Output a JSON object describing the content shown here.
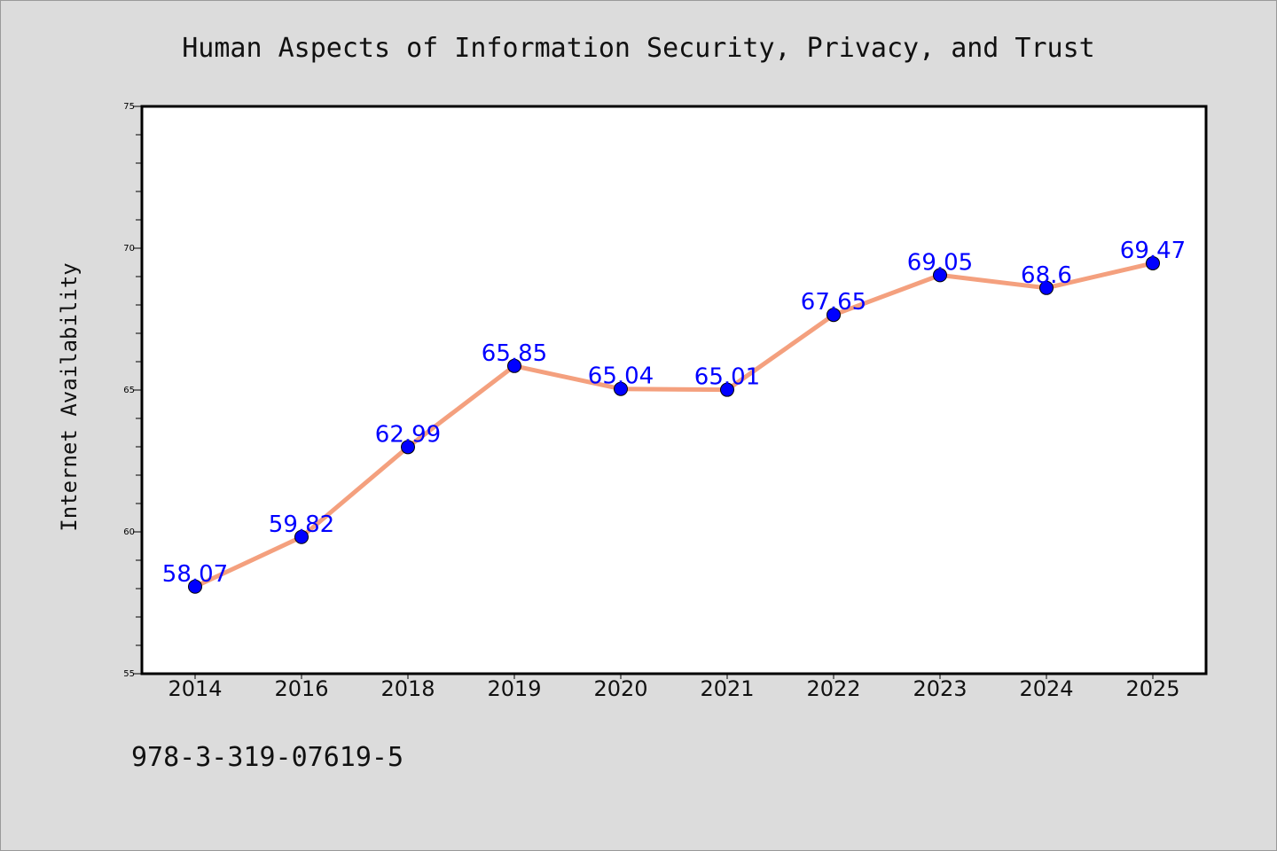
{
  "chart_data": {
    "type": "line",
    "title": "Human Aspects of Information Security, Privacy, and Trust",
    "ylabel": "Internet Availability",
    "xlabel": "",
    "categories": [
      "2014",
      "2016",
      "2018",
      "2019",
      "2020",
      "2021",
      "2022",
      "2023",
      "2024",
      "2025"
    ],
    "series": [
      {
        "values": [
          58.07,
          59.82,
          62.99,
          65.85,
          65.04,
          65.01,
          67.65,
          69.05,
          68.6,
          69.47
        ]
      }
    ],
    "data_labels": [
      "58.07",
      "59.82",
      "62.99",
      "65.85",
      "65.04",
      "65.01",
      "67.65",
      "69.05",
      "68.6",
      "69.47"
    ],
    "ylim": [
      55,
      75
    ],
    "yticks": [
      55,
      60,
      65,
      70,
      75
    ],
    "ytick_labels": [
      "55",
      "60",
      "65",
      "70",
      "75"
    ],
    "grid": false,
    "legend": "none",
    "colors": {
      "line": "#f4a07e",
      "marker": "#0000ff",
      "label": "#0000ff",
      "background": "#dcdcdc",
      "plot_background": "#ffffff"
    },
    "footnote": "978-3-319-07619-5"
  }
}
